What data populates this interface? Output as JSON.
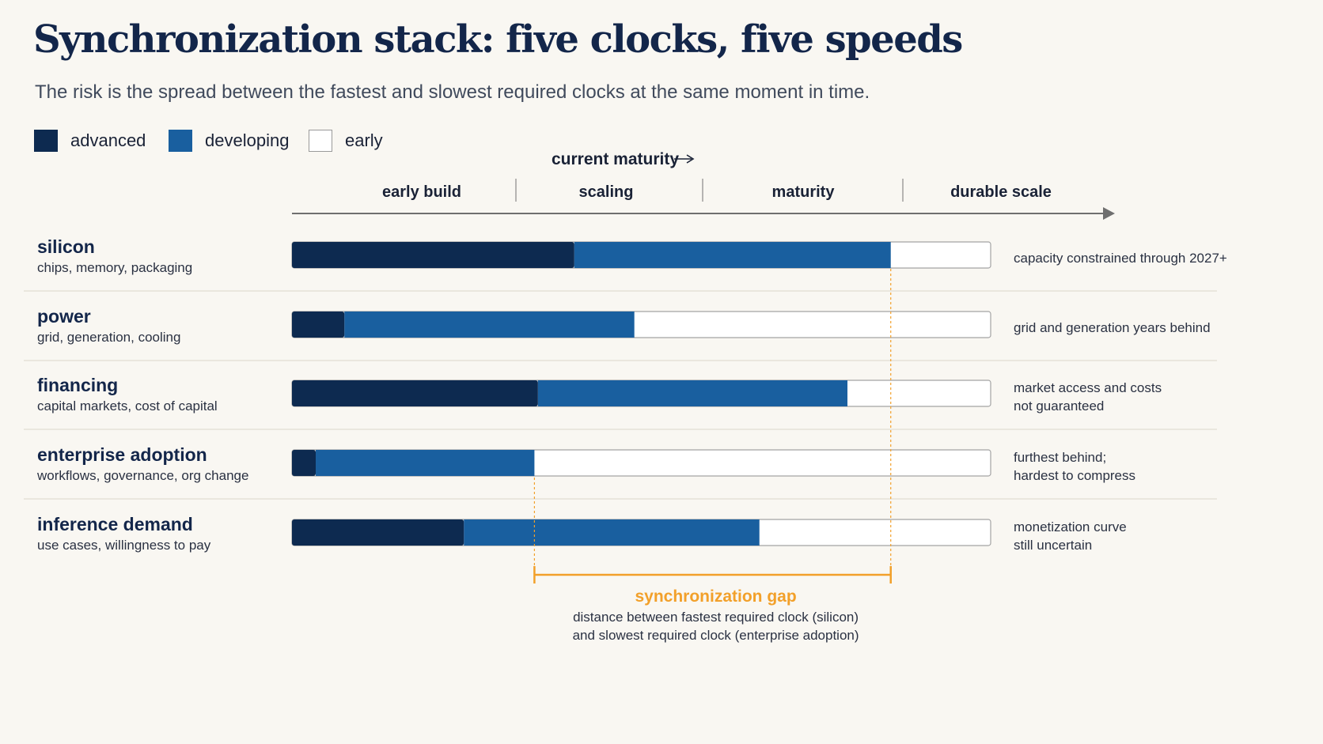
{
  "title": "Synchronization stack: five clocks, five speeds",
  "subtitle": "The risk is the spread between the fastest and slowest required clocks at the same moment in time.",
  "colors": {
    "advanced": "#0d2a50",
    "developing": "#195f9f",
    "early": "#ffffff",
    "gap": "#f2a02a",
    "axis": "#6f6f6f"
  },
  "legend": [
    {
      "key": "advanced",
      "label": "advanced"
    },
    {
      "key": "developing",
      "label": "developing"
    },
    {
      "key": "early",
      "label": "early"
    }
  ],
  "chart_data": {
    "type": "bar",
    "orientation": "horizontal",
    "stacked": true,
    "xlabel": "current maturity",
    "x_stages": [
      "early build",
      "scaling",
      "maturity",
      "durable scale"
    ],
    "xlim": [
      0,
      100
    ],
    "categories": [
      {
        "name": "silicon",
        "sub": "chips, memory, packaging",
        "note": [
          "capacity constrained through 2027+"
        ],
        "advanced": 40.4,
        "developing": 45.3,
        "early": 14.3
      },
      {
        "name": "power",
        "sub": "grid, generation, cooling",
        "note": [
          "grid and generation years behind"
        ],
        "advanced": 7.5,
        "developing": 41.5,
        "early": 51.0
      },
      {
        "name": "financing",
        "sub": "capital markets, cost of capital",
        "note": [
          "market access and costs",
          "not guaranteed"
        ],
        "advanced": 35.2,
        "developing": 44.3,
        "early": 20.5
      },
      {
        "name": "enterprise adoption",
        "sub": "workflows, governance, org change",
        "note": [
          "furthest behind;",
          "hardest to compress"
        ],
        "advanced": 3.4,
        "developing": 31.3,
        "early": 65.3
      },
      {
        "name": "inference demand",
        "sub": "use cases, willingness to pay",
        "note": [
          "monetization curve",
          "still uncertain"
        ],
        "advanced": 24.6,
        "developing": 42.3,
        "early": 33.1
      }
    ],
    "gap": {
      "label": "synchronization gap",
      "description": [
        "distance between fastest required clock (silicon)",
        "and slowest required clock (enterprise adoption)"
      ],
      "from": 34.7,
      "to": 85.7
    }
  }
}
